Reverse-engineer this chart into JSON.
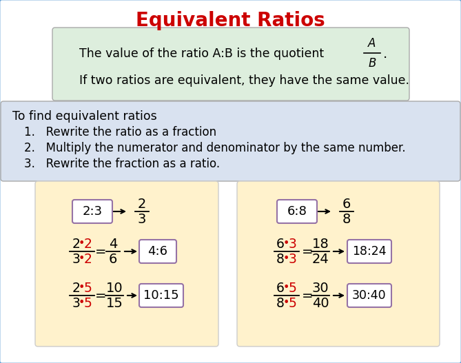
{
  "title": "Equivalent Ratios",
  "title_color": "#cc0000",
  "title_fontsize": 20,
  "bg_color": "#ffffff",
  "border_color": "#5b9bd5",
  "green_box_color": "#ddeedd",
  "blue_box_color": "#d9e2f0",
  "yellow_box_color": "#fff2cc",
  "purple_edge_color": "#9673a6",
  "text_color": "#000000",
  "red_color": "#cc0000",
  "green_line1": "The value of the ratio A:B is the quotient",
  "green_line2": "If two ratios are equivalent, they have the same value.",
  "blue_title": "To find equivalent ratios",
  "blue_steps": [
    "Rewrite the ratio as a fraction",
    "Multiply the numerator and denominator by the same number.",
    "Rewrite the fraction as a ratio."
  ]
}
